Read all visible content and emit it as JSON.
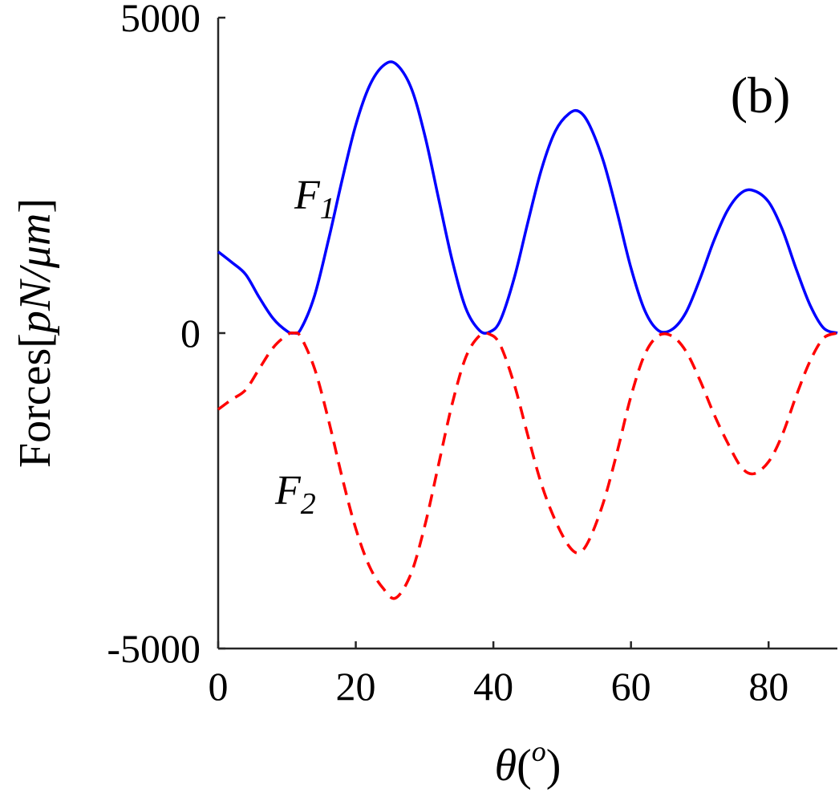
{
  "chart_data": {
    "type": "line",
    "panel_label": "(b)",
    "xlabel": {
      "symbol": "θ",
      "open": "(",
      "sup": "o",
      "close": ")"
    },
    "ylabel": {
      "text": "Forces",
      "open": "[",
      "unit": "pN/μm",
      "close": "]"
    },
    "xlim": [
      0,
      90
    ],
    "ylim": [
      -5000,
      5000
    ],
    "xticks": [
      0,
      20,
      40,
      60,
      80
    ],
    "xtick_labels": [
      "0",
      "20",
      "40",
      "60",
      "80"
    ],
    "yticks": [
      -5000,
      0,
      5000
    ],
    "ytick_labels": [
      "-5000",
      "0",
      "5000"
    ],
    "x": [
      0,
      2,
      4,
      6,
      8,
      10,
      11,
      12,
      14,
      16,
      18,
      20,
      22,
      24,
      25.8,
      28,
      30,
      32,
      34,
      36,
      38,
      39.5,
      41,
      43,
      45,
      47,
      49,
      51,
      52.5,
      54,
      56,
      58,
      60,
      62,
      64,
      66,
      68,
      70,
      72,
      74,
      76,
      77.8,
      80,
      82,
      84,
      86,
      88,
      90
    ],
    "series": [
      {
        "name": "F1",
        "label_main": "F",
        "label_sub": "1",
        "color": "#0000ff",
        "dash": "solid",
        "values": [
          1290,
          1120,
          930,
          560,
          230,
          30,
          0,
          60,
          590,
          1460,
          2420,
          3300,
          3920,
          4240,
          4270,
          3900,
          3150,
          2150,
          1160,
          390,
          40,
          20,
          200,
          860,
          1750,
          2600,
          3200,
          3480,
          3510,
          3290,
          2720,
          1910,
          1030,
          360,
          40,
          60,
          330,
          850,
          1450,
          1940,
          2220,
          2260,
          2080,
          1640,
          1020,
          450,
          80,
          0
        ]
      },
      {
        "name": "F2",
        "label_main": "F",
        "label_sub": "2",
        "color": "#ff0000",
        "dash": "dashed",
        "values": [
          -1210,
          -1050,
          -900,
          -560,
          -230,
          -30,
          0,
          -60,
          -560,
          -1360,
          -2280,
          -3100,
          -3700,
          -4050,
          -4200,
          -3820,
          -3070,
          -2100,
          -1130,
          -380,
          -40,
          -20,
          -190,
          -800,
          -1620,
          -2400,
          -2970,
          -3380,
          -3480,
          -3260,
          -2680,
          -1880,
          -1000,
          -340,
          -40,
          -50,
          -290,
          -740,
          -1270,
          -1730,
          -2120,
          -2230,
          -2040,
          -1610,
          -1000,
          -450,
          -80,
          0
        ]
      }
    ]
  }
}
